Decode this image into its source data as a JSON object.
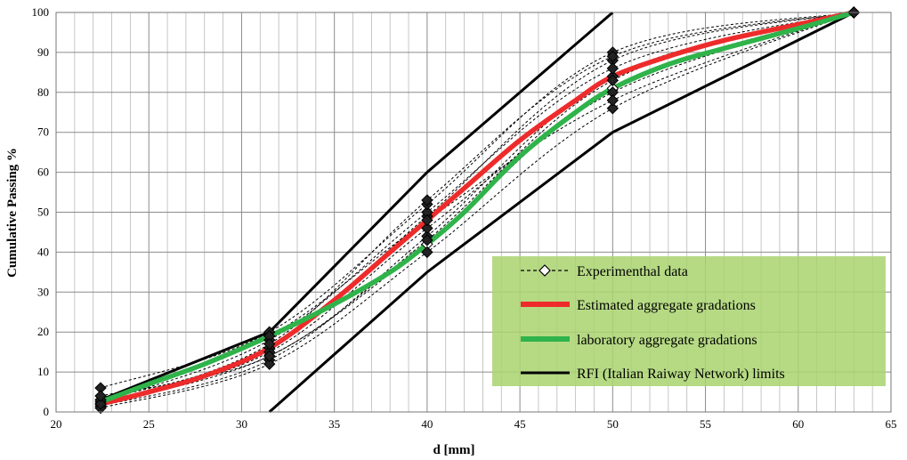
{
  "chart_data": {
    "type": "line",
    "title": "",
    "xlabel": "d [mm]",
    "ylabel": "Cumulative Passing %",
    "xlim": [
      20,
      65
    ],
    "ylim": [
      0,
      100
    ],
    "xticks": [
      20,
      25,
      30,
      35,
      40,
      45,
      50,
      55,
      60,
      65
    ],
    "yticks": [
      0,
      10,
      20,
      30,
      40,
      50,
      60,
      70,
      80,
      90,
      100
    ],
    "grid": true,
    "legend_position": "bottom-right",
    "legend_background": "#a9d46e",
    "series": [
      {
        "name": "Experimenthal data",
        "style": "dashed-diamond",
        "color": "#000000",
        "points": [
          [
            22.4,
            2
          ],
          [
            31.5,
            14
          ],
          [
            40,
            42
          ],
          [
            50,
            81
          ],
          [
            63,
            100
          ]
        ]
      },
      {
        "name": "Estimated aggregate gradations",
        "style": "thick-line",
        "color": "#ee2b2b",
        "points": [
          [
            22.4,
            2
          ],
          [
            25,
            5
          ],
          [
            28,
            9
          ],
          [
            31.5,
            16
          ],
          [
            35,
            28
          ],
          [
            38,
            40
          ],
          [
            40,
            48
          ],
          [
            42,
            56
          ],
          [
            45,
            68
          ],
          [
            48,
            78
          ],
          [
            50,
            84
          ],
          [
            53,
            89
          ],
          [
            56,
            93
          ],
          [
            60,
            97
          ],
          [
            63,
            100
          ]
        ]
      },
      {
        "name": "laboratory aggregate gradations",
        "style": "thick-line",
        "color": "#2fb34a",
        "points": [
          [
            22.4,
            2.5
          ],
          [
            25,
            7
          ],
          [
            28,
            12
          ],
          [
            31.5,
            19
          ],
          [
            35,
            27
          ],
          [
            38,
            35
          ],
          [
            40,
            42
          ],
          [
            42,
            50
          ],
          [
            45,
            64
          ],
          [
            48,
            75
          ],
          [
            50,
            81
          ],
          [
            53,
            87
          ],
          [
            56,
            91
          ],
          [
            60,
            96
          ],
          [
            63,
            100
          ]
        ]
      },
      {
        "name": "RFI (Italian Raiway Network)  limits",
        "style": "solid-line",
        "color": "#000000",
        "lines": [
          [
            [
              22.4,
              3
            ],
            [
              31.5,
              20
            ],
            [
              40,
              60
            ],
            [
              50,
              100
            ]
          ],
          [
            [
              31.5,
              0
            ],
            [
              40,
              35
            ],
            [
              50,
              70
            ],
            [
              63,
              100
            ]
          ]
        ]
      }
    ],
    "experimental_curves": [
      [
        [
          22.4,
          2
        ],
        [
          31.5,
          14
        ],
        [
          40,
          42
        ],
        [
          50,
          81
        ],
        [
          63,
          100
        ]
      ],
      [
        [
          22.4,
          3
        ],
        [
          31.5,
          16
        ],
        [
          40,
          49
        ],
        [
          50,
          88
        ],
        [
          63,
          100
        ]
      ],
      [
        [
          22.4,
          1.5
        ],
        [
          31.5,
          13
        ],
        [
          40,
          44
        ],
        [
          50,
          84
        ],
        [
          63,
          100
        ]
      ],
      [
        [
          22.4,
          2.5
        ],
        [
          31.5,
          18
        ],
        [
          40,
          50
        ],
        [
          50,
          86
        ],
        [
          63,
          100
        ]
      ],
      [
        [
          22.4,
          6
        ],
        [
          31.5,
          20
        ],
        [
          40,
          52
        ],
        [
          50,
          90
        ],
        [
          63,
          100
        ]
      ],
      [
        [
          22.4,
          2
        ],
        [
          31.5,
          15
        ],
        [
          40,
          46
        ],
        [
          50,
          80
        ],
        [
          63,
          100
        ]
      ],
      [
        [
          22.4,
          1
        ],
        [
          31.5,
          12
        ],
        [
          40,
          40
        ],
        [
          50,
          76
        ],
        [
          63,
          100
        ]
      ],
      [
        [
          22.4,
          3
        ],
        [
          31.5,
          19
        ],
        [
          40,
          48
        ],
        [
          50,
          78
        ],
        [
          63,
          100
        ]
      ],
      [
        [
          22.4,
          2
        ],
        [
          31.5,
          17
        ],
        [
          40,
          53
        ],
        [
          50,
          89
        ],
        [
          63,
          100
        ]
      ],
      [
        [
          22.4,
          4
        ],
        [
          31.5,
          14
        ],
        [
          40,
          43
        ],
        [
          50,
          83
        ],
        [
          63,
          100
        ]
      ]
    ]
  }
}
